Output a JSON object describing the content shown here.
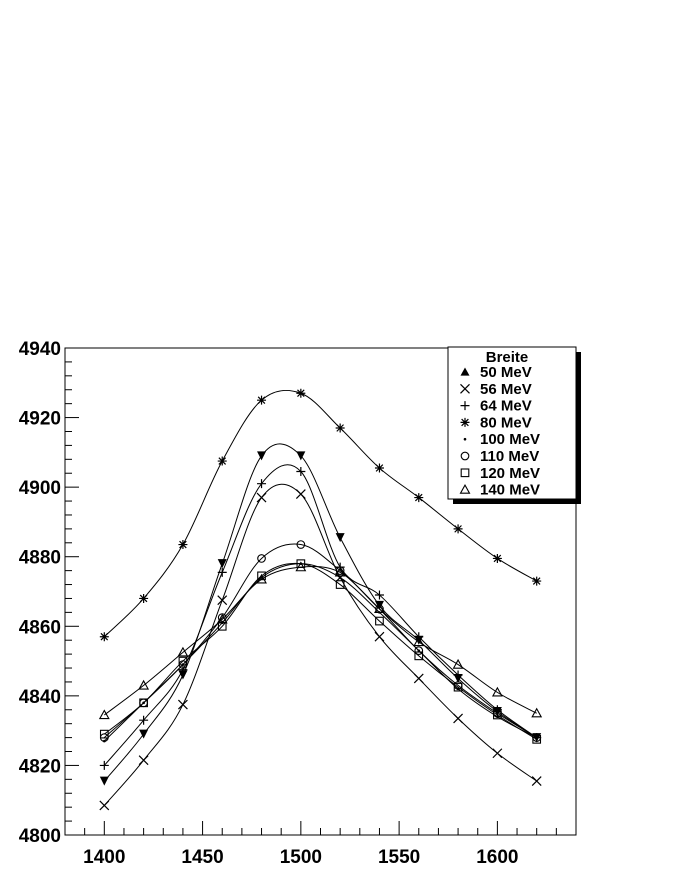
{
  "chart_data": {
    "type": "line",
    "title": "",
    "xlabel": "",
    "ylabel": "",
    "xlim": [
      1380,
      1640
    ],
    "ylim": [
      4800,
      4940
    ],
    "x_ticks": [
      1400,
      1450,
      1500,
      1550,
      1600
    ],
    "y_ticks": [
      4800,
      4820,
      4840,
      4860,
      4880,
      4900,
      4920,
      4940
    ],
    "grid": false,
    "legend": {
      "title": "Breite",
      "placement": "top-right"
    },
    "x": [
      1400,
      1420,
      1440,
      1460,
      1480,
      1500,
      1520,
      1540,
      1560,
      1580,
      1600,
      1620
    ],
    "series": [
      {
        "name": "50 MeV",
        "marker": "triangle-down-filled",
        "values": [
          4815.5,
          4829,
          4846,
          4878,
          4909,
          4909,
          4885.5,
          4866,
          4856,
          4845,
          4835.5,
          4828
        ]
      },
      {
        "name": "56 MeV",
        "marker": "x",
        "values": [
          4808.5,
          4821.5,
          4837.5,
          4867.5,
          4897,
          4898,
          4874,
          4857,
          4845,
          4833.5,
          4823.5,
          4815.5
        ]
      },
      {
        "name": "64 MeV",
        "marker": "plus",
        "values": [
          4820,
          4833,
          4847.5,
          4875.5,
          4901,
          4904.5,
          4877,
          4869,
          4857,
          4846,
          4836,
          4828
        ]
      },
      {
        "name": "80 MeV",
        "marker": "asterisk",
        "values": [
          4857,
          4868,
          4883.5,
          4907.5,
          4925,
          4927,
          4917,
          4905.5,
          4897,
          4888,
          4879.5,
          4873
        ]
      },
      {
        "name": "100 MeV",
        "marker": "dot",
        "values": [
          4827,
          4838,
          4849,
          4861,
          4874,
          4878,
          4874,
          4864,
          4853,
          4842,
          4834,
          4828
        ]
      },
      {
        "name": "110 MeV",
        "marker": "circle",
        "values": [
          4828,
          4838,
          4849,
          4862.5,
          4879.5,
          4883.5,
          4876,
          4865,
          4853,
          4843,
          4835,
          4828
        ]
      },
      {
        "name": "120 MeV",
        "marker": "square",
        "values": [
          4829,
          4838,
          4850,
          4860,
          4874.5,
          4878,
          4872,
          4861.5,
          4851.5,
          4842.5,
          4834.5,
          4827.5
        ]
      },
      {
        "name": "140 MeV",
        "marker": "triangle",
        "values": [
          4834.5,
          4843,
          4852.5,
          4862,
          4873.5,
          4877,
          4875.5,
          4865,
          4855.5,
          4849,
          4841,
          4835
        ]
      }
    ]
  }
}
